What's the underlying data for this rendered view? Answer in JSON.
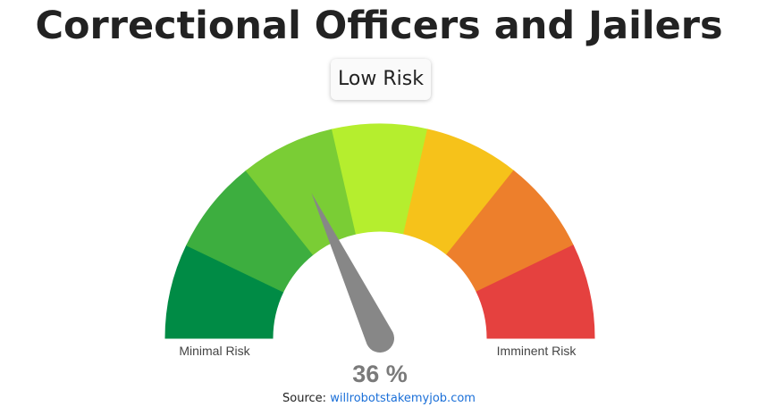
{
  "chart_data": {
    "type": "gauge",
    "title": "Correctional Officers and Jailers",
    "subtitle": "Low Risk",
    "values": [
      36
    ],
    "value_labels": [
      "36 %"
    ],
    "ylim": [
      0,
      100
    ],
    "min_label": "Minimal Risk",
    "max_label": "Imminent Risk",
    "band_colors": [
      "#008b45",
      "#3dae3f",
      "#7acd35",
      "#b5ee2e",
      "#f6c21a",
      "#ed7f2c",
      "#e5413f"
    ],
    "needle_color": "#878787",
    "source_prefix": "Source:",
    "source_link": "willrobotstakemyjob.com"
  }
}
